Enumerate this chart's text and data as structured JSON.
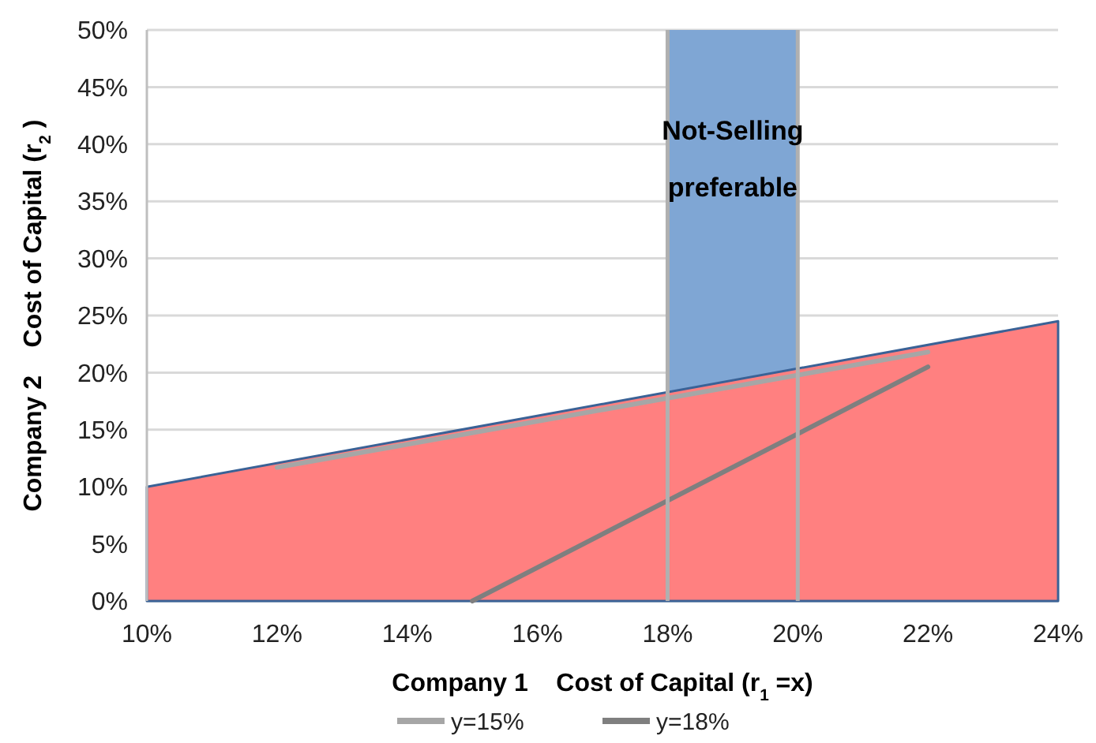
{
  "chart_data": {
    "type": "area",
    "xlabel": "Company 1    Cost of Capital (r$_{1}$ =x)",
    "ylabel": "Company 2    Cost of Capital (r$_{2}$ )",
    "xlim": [
      10,
      24
    ],
    "ylim": [
      0,
      50
    ],
    "xticks": [
      {
        "value": 10,
        "label": "10%"
      },
      {
        "value": 12,
        "label": "12%"
      },
      {
        "value": 14,
        "label": "14%"
      },
      {
        "value": 16,
        "label": "16%"
      },
      {
        "value": 18,
        "label": "18%"
      },
      {
        "value": 20,
        "label": "20%"
      },
      {
        "value": 22,
        "label": "22%"
      },
      {
        "value": 24,
        "label": "24%"
      }
    ],
    "yticks": [
      {
        "value": 0,
        "label": "0%"
      },
      {
        "value": 5,
        "label": "5%"
      },
      {
        "value": 10,
        "label": "10%"
      },
      {
        "value": 15,
        "label": "15%"
      },
      {
        "value": 20,
        "label": "20%"
      },
      {
        "value": 25,
        "label": "25%"
      },
      {
        "value": 30,
        "label": "30%"
      },
      {
        "value": 35,
        "label": "35%"
      },
      {
        "value": 40,
        "label": "40%"
      },
      {
        "value": 45,
        "label": "45%"
      },
      {
        "value": 50,
        "label": "50%"
      }
    ],
    "grid": "y",
    "legend": "bottom",
    "bands": [
      {
        "axis": "x",
        "from": 18,
        "to": 20,
        "label": "Not-Selling preferable",
        "color": "#7fa6d4"
      }
    ],
    "series": [
      {
        "color": "#ff8080",
        "x": [
          10,
          24
        ],
        "values": [
          10,
          24.5
        ]
      },
      {
        "type": "line",
        "name": "y=15%",
        "color": "#a6a6a6",
        "x": [
          12,
          22
        ],
        "values": [
          11.7,
          21.8
        ]
      },
      {
        "type": "line",
        "name": "y=18%",
        "color": "#7f7f7f",
        "x": [
          15,
          22
        ],
        "values": [
          0,
          20.5
        ]
      }
    ],
    "ref_lines": [
      {
        "axis": "x",
        "value": 18,
        "color": "#b0b0b0"
      },
      {
        "axis": "x",
        "value": 20,
        "color": "#b0b0b0"
      }
    ]
  }
}
